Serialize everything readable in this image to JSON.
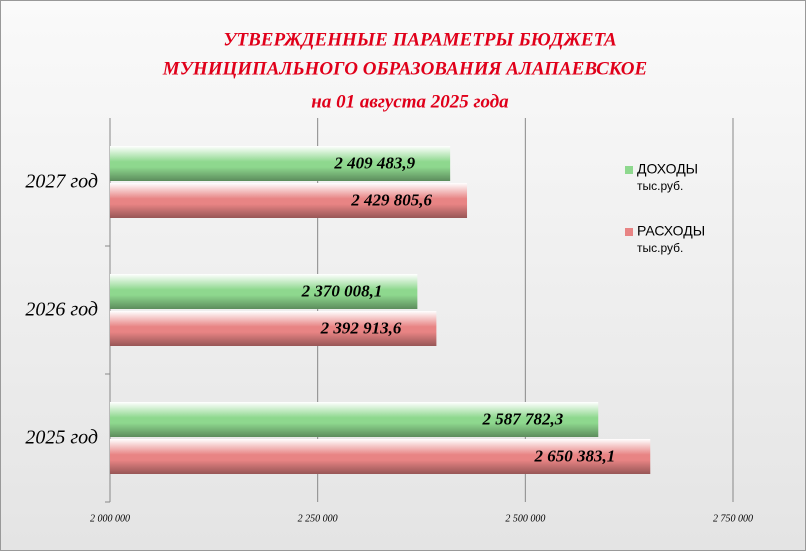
{
  "chart_data": {
    "type": "hbar",
    "title": [
      "УТВЕРЖДЕННЫЕ  ПАРАМЕТРЫ БЮДЖЕТА",
      "МУНИЦИПАЛЬНОГО  ОБРАЗОВАНИЯ  АЛАПАЕВСКОЕ",
      "на 01 августа 2025 года"
    ],
    "categories": [
      "2027 год",
      "2026 год",
      "2025 год"
    ],
    "series": [
      {
        "name": "ДОХОДЫ",
        "unit": "тыс.руб.",
        "color": "#8ed88e",
        "values": [
          2409483.9,
          2370008.1,
          2587782.3
        ],
        "value_labels": [
          "2 409 483,9",
          "2 370 008,1",
          "2 587 782,3"
        ]
      },
      {
        "name": "РАСХОДЫ",
        "unit": "тыс.руб.",
        "color": "#e88484",
        "values": [
          2429805.6,
          2392913.6,
          2650383.1
        ],
        "value_labels": [
          "2 429 805,6",
          "2 392 913,6",
          "2 650 383,1"
        ]
      }
    ],
    "xlim": [
      2000000,
      2750000
    ],
    "xticks": [
      {
        "value": 2000000,
        "label": "2 000 000"
      },
      {
        "value": 2250000,
        "label": "2 250 000"
      },
      {
        "value": 2500000,
        "label": "2 500 000"
      },
      {
        "value": 2750000,
        "label": "2 750 000"
      }
    ],
    "grid": true,
    "legend": "right"
  }
}
